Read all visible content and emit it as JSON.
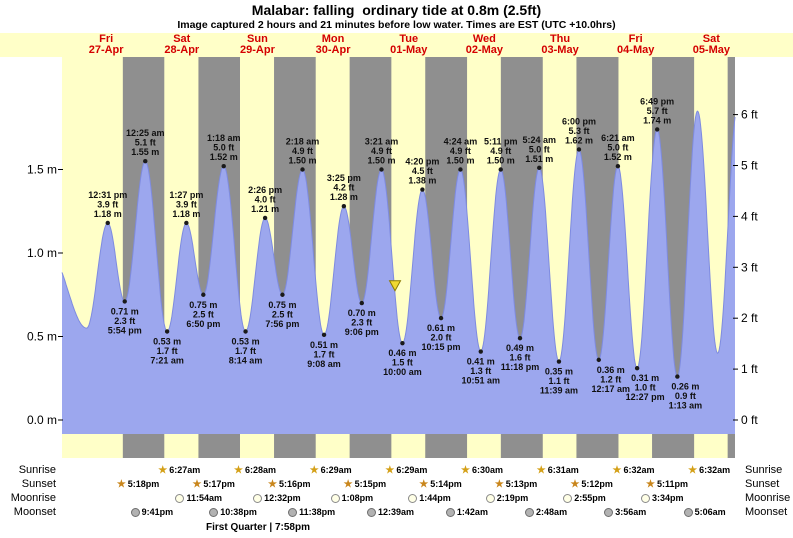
{
  "header": {
    "title": "Malabar: falling  ordinary tide at 0.8m (2.5ft)",
    "subtitle": "Image captured 2 hours and 21 minutes before low water. Times are EST (UTC +10.0hrs)"
  },
  "days": [
    {
      "weekday": "Fri",
      "date": "27-Apr",
      "noon_t": 12
    },
    {
      "weekday": "Sat",
      "date": "28-Apr",
      "noon_t": 36
    },
    {
      "weekday": "Sun",
      "date": "29-Apr",
      "noon_t": 60
    },
    {
      "weekday": "Mon",
      "date": "30-Apr",
      "noon_t": 84
    },
    {
      "weekday": "Tue",
      "date": "01-May",
      "noon_t": 108
    },
    {
      "weekday": "Wed",
      "date": "02-May",
      "noon_t": 132
    },
    {
      "weekday": "Thu",
      "date": "03-May",
      "noon_t": 156
    },
    {
      "weekday": "Fri",
      "date": "04-May",
      "noon_t": 180
    },
    {
      "weekday": "Sat",
      "date": "05-May",
      "noon_t": 204
    }
  ],
  "axes": {
    "left_labels": [
      {
        "value": 1.5,
        "label": "1.5 m"
      },
      {
        "value": 1.0,
        "label": "1.0 m"
      },
      {
        "value": 0.5,
        "label": "0.5 m"
      },
      {
        "value": 0.0,
        "label": "0.0 m"
      }
    ],
    "right_labels": [
      {
        "ft": 6,
        "label": "6 ft"
      },
      {
        "ft": 5,
        "label": "5 ft"
      },
      {
        "ft": 4,
        "label": "4 ft"
      },
      {
        "ft": 3,
        "label": "3 ft"
      },
      {
        "ft": 2,
        "label": "2 ft"
      },
      {
        "ft": 1,
        "label": "1 ft"
      },
      {
        "ft": 0,
        "label": "0 ft"
      }
    ]
  },
  "chart_data": {
    "type": "area",
    "x_unit": "hours from 27-Apr 00:00",
    "x_range": [
      -2,
      211.5
    ],
    "y_unit_left": "m",
    "y_unit_right": "ft",
    "ylim_m": [
      0,
      2.2
    ],
    "night_bands": [
      [
        17.3,
        30.45
      ],
      [
        41.283,
        54.467
      ],
      [
        65.267,
        78.483
      ],
      [
        89.25,
        102.483
      ],
      [
        113.233,
        126.5
      ],
      [
        137.217,
        150.517
      ],
      [
        161.2,
        174.533
      ],
      [
        185.183,
        198.533
      ],
      [
        209.17,
        211.5
      ]
    ],
    "tide_events": [
      {
        "t": -6,
        "m": 1.0,
        "type": "high",
        "lines": [],
        "estimated": true
      },
      {
        "t": 5.8,
        "m": 0.55,
        "type": "low",
        "lines": [],
        "estimated": true
      },
      {
        "t": 12.517,
        "m": 1.18,
        "type": "high",
        "lines": [
          "12:31 pm",
          "3.9 ft",
          "1.18 m"
        ]
      },
      {
        "t": 17.9,
        "m": 0.71,
        "type": "low",
        "lines": [
          "0.71 m",
          "2.3 ft",
          "5:54 pm"
        ]
      },
      {
        "t": 24.417,
        "m": 1.55,
        "type": "high",
        "lines": [
          "12:25 am",
          "5.1 ft",
          "1.55 m"
        ]
      },
      {
        "t": 31.35,
        "m": 0.53,
        "type": "low",
        "lines": [
          "0.53 m",
          "1.7 ft",
          "7:21 am"
        ]
      },
      {
        "t": 37.45,
        "m": 1.18,
        "type": "high",
        "lines": [
          "1:27 pm",
          "3.9 ft",
          "1.18 m"
        ]
      },
      {
        "t": 42.833,
        "m": 0.75,
        "type": "low",
        "lines": [
          "0.75 m",
          "2.5 ft",
          "6:50 pm"
        ]
      },
      {
        "t": 49.3,
        "m": 1.52,
        "type": "high",
        "lines": [
          "1:18 am",
          "5.0 ft",
          "1.52 m"
        ]
      },
      {
        "t": 56.233,
        "m": 0.53,
        "type": "low",
        "lines": [
          "0.53 m",
          "1.7 ft",
          "8:14 am"
        ]
      },
      {
        "t": 62.433,
        "m": 1.21,
        "type": "high",
        "lines": [
          "2:26 pm",
          "4.0 ft",
          "1.21 m"
        ]
      },
      {
        "t": 67.933,
        "m": 0.75,
        "type": "low",
        "lines": [
          "0.75 m",
          "2.5 ft",
          "7:56 pm"
        ]
      },
      {
        "t": 74.3,
        "m": 1.5,
        "type": "high",
        "lines": [
          "2:18 am",
          "4.9 ft",
          "1.50 m"
        ]
      },
      {
        "t": 81.133,
        "m": 0.51,
        "type": "low",
        "lines": [
          "0.51 m",
          "1.7 ft",
          "9:08 am"
        ]
      },
      {
        "t": 87.417,
        "m": 1.28,
        "type": "high",
        "lines": [
          "3:25 pm",
          "4.2 ft",
          "1.28 m"
        ]
      },
      {
        "t": 93.1,
        "m": 0.7,
        "type": "low",
        "lines": [
          "0.70 m",
          "2.3 ft",
          "9:06 pm"
        ]
      },
      {
        "t": 99.35,
        "m": 1.5,
        "type": "high",
        "lines": [
          "3:21 am",
          "4.9 ft",
          "1.50 m"
        ]
      },
      {
        "t": 106.0,
        "m": 0.46,
        "type": "low",
        "lines": [
          "0.46 m",
          "1.5 ft",
          "10:00 am"
        ]
      },
      {
        "t": 112.333,
        "m": 1.38,
        "type": "high",
        "lines": [
          "4:20 pm",
          "4.5 ft",
          "1.38 m"
        ]
      },
      {
        "t": 118.25,
        "m": 0.61,
        "type": "low",
        "lines": [
          "0.61 m",
          "2.0 ft",
          "10:15 pm"
        ]
      },
      {
        "t": 124.4,
        "m": 1.5,
        "type": "high",
        "lines": [
          "4:24 am",
          "4.9 ft",
          "1.50 m"
        ]
      },
      {
        "t": 130.85,
        "m": 0.41,
        "type": "low",
        "lines": [
          "0.41 m",
          "1.3 ft",
          "10:51 am"
        ]
      },
      {
        "t": 137.183,
        "m": 1.5,
        "type": "high",
        "lines": [
          "5:11 pm",
          "4.9 ft",
          "1.50 m"
        ]
      },
      {
        "t": 143.3,
        "m": 0.49,
        "type": "low",
        "lines": [
          "0.49 m",
          "1.6 ft",
          "11:18 pm"
        ]
      },
      {
        "t": 149.4,
        "m": 1.51,
        "type": "high",
        "lines": [
          "5:24 am",
          "5.0 ft",
          "1.51 m"
        ]
      },
      {
        "t": 155.65,
        "m": 0.35,
        "type": "low",
        "lines": [
          "0.35 m",
          "1.1 ft",
          "11:39 am"
        ]
      },
      {
        "t": 162.0,
        "m": 1.62,
        "type": "high",
        "lines": [
          "6:00 pm",
          "5.3 ft",
          "1.62 m"
        ]
      },
      {
        "t": 168.283,
        "m": 0.36,
        "type": "low",
        "lines": [
          "0.36 m",
          "1.2 ft",
          "12:17 am"
        ],
        "dx": 12
      },
      {
        "t": 174.35,
        "m": 1.52,
        "type": "high",
        "lines": [
          "6:21 am",
          "5.0 ft",
          "1.52 m"
        ]
      },
      {
        "t": 180.45,
        "m": 0.31,
        "type": "low",
        "lines": [
          "0.31 m",
          "1.0 ft",
          "12:27 pm"
        ],
        "dx": 8
      },
      {
        "t": 186.817,
        "m": 1.74,
        "type": "high",
        "lines": [
          "6:49 pm",
          "5.7 ft",
          "1.74 m"
        ]
      },
      {
        "t": 193.217,
        "m": 0.26,
        "type": "low",
        "lines": [
          "0.26 m",
          "0.9 ft",
          "1:13 am"
        ],
        "dx": 8
      },
      {
        "t": 199.6,
        "m": 1.85,
        "type": "high",
        "lines": [],
        "estimated": true
      },
      {
        "t": 206.0,
        "m": 0.4,
        "type": "low",
        "lines": [],
        "estimated": true
      },
      {
        "t": 212.5,
        "m": 1.9,
        "type": "high",
        "lines": [],
        "estimated": true
      }
    ],
    "current_marker": {
      "t": 103.65,
      "m": 0.75
    },
    "colors": {
      "day_bg": "#ffffc8",
      "night_bg": "#8f8f8f",
      "tide_fill": "#9ca7ee",
      "tide_stroke": "#7e8be0",
      "date_text": "#d40000",
      "marker_fill": "#f0d832",
      "marker_stroke": "#8c7a00",
      "sunrise_star": "#d4a017",
      "sunset_star": "#c9861c",
      "moonrise_fill": "#ffffe6",
      "moonrise_border": "#8a8a8a",
      "moonset_fill": "#b2b2b2",
      "moonset_border": "#6e6e6e"
    }
  },
  "almanac": {
    "rows": [
      {
        "name": "Sunrise",
        "icon": "sunrise-star",
        "items": [
          {
            "t": 30.45,
            "time": "6:27am"
          },
          {
            "t": 54.467,
            "time": "6:28am"
          },
          {
            "t": 78.483,
            "time": "6:29am"
          },
          {
            "t": 102.483,
            "time": "6:29am"
          },
          {
            "t": 126.5,
            "time": "6:30am"
          },
          {
            "t": 150.517,
            "time": "6:31am"
          },
          {
            "t": 174.533,
            "time": "6:32am"
          },
          {
            "t": 198.533,
            "time": "6:32am"
          }
        ]
      },
      {
        "name": "Sunset",
        "icon": "sunset-star",
        "items": [
          {
            "t": 17.3,
            "time": "5:18pm"
          },
          {
            "t": 41.283,
            "time": "5:17pm"
          },
          {
            "t": 65.267,
            "time": "5:16pm"
          },
          {
            "t": 89.25,
            "time": "5:15pm"
          },
          {
            "t": 113.233,
            "time": "5:14pm"
          },
          {
            "t": 137.217,
            "time": "5:13pm"
          },
          {
            "t": 161.2,
            "time": "5:12pm"
          },
          {
            "t": 185.183,
            "time": "5:11pm"
          }
        ]
      },
      {
        "name": "Moonrise",
        "icon": "moonrise-circle",
        "items": [
          {
            "t": 35.9,
            "time": "11:54am"
          },
          {
            "t": 60.533,
            "time": "12:32pm"
          },
          {
            "t": 85.133,
            "time": "1:08pm"
          },
          {
            "t": 109.733,
            "time": "1:44pm"
          },
          {
            "t": 134.317,
            "time": "2:19pm"
          },
          {
            "t": 158.917,
            "time": "2:55pm"
          },
          {
            "t": 183.567,
            "time": "3:34pm"
          }
        ]
      },
      {
        "name": "Moonset",
        "icon": "moonset-circle",
        "items": [
          {
            "t": 21.683,
            "time": "9:41pm"
          },
          {
            "t": 46.633,
            "time": "10:38pm"
          },
          {
            "t": 71.633,
            "time": "11:38pm"
          },
          {
            "t": 96.65,
            "time": "12:39am"
          },
          {
            "t": 121.7,
            "time": "1:42am"
          },
          {
            "t": 146.8,
            "time": "2:48am"
          },
          {
            "t": 171.933,
            "time": "3:56am"
          },
          {
            "t": 197.1,
            "time": "5:06am"
          }
        ]
      }
    ],
    "moon_phase": "First Quarter | 7:58pm"
  }
}
